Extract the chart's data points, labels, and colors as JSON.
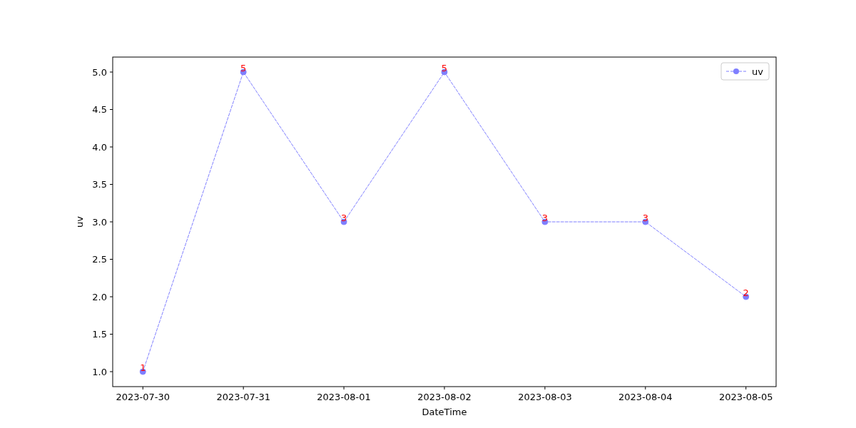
{
  "chart_data": {
    "type": "line",
    "xlabel": "DateTime",
    "ylabel": "uv",
    "x": [
      "2023-07-30",
      "2023-07-31",
      "2023-08-01",
      "2023-08-02",
      "2023-08-03",
      "2023-08-04",
      "2023-08-05"
    ],
    "series": [
      {
        "name": "uv",
        "color": "#7f7fff",
        "values": [
          1,
          5,
          3,
          5,
          3,
          3,
          2
        ]
      }
    ],
    "xlim": [
      "2023-07-29T16:48",
      "2023-08-05T07:12"
    ],
    "xticks": [
      "2023-07-30",
      "2023-07-31",
      "2023-08-01",
      "2023-08-02",
      "2023-08-03",
      "2023-08-04",
      "2023-08-05"
    ],
    "ylim": [
      0.8,
      5.2
    ],
    "yticks": [
      {
        "value": 1,
        "label": "1.0"
      },
      {
        "value": 1.5,
        "label": "1.5"
      },
      {
        "value": 2,
        "label": "2.0"
      },
      {
        "value": 2.5,
        "label": "2.5"
      },
      {
        "value": 3,
        "label": "3.0"
      },
      {
        "value": 3.5,
        "label": "3.5"
      },
      {
        "value": 4,
        "label": "4.0"
      },
      {
        "value": 4.5,
        "label": "4.5"
      },
      {
        "value": 5,
        "label": "5.0"
      }
    ],
    "data_labels": true,
    "legend": "top right",
    "marker": "circle",
    "line_style": "dashed",
    "grid": false
  }
}
